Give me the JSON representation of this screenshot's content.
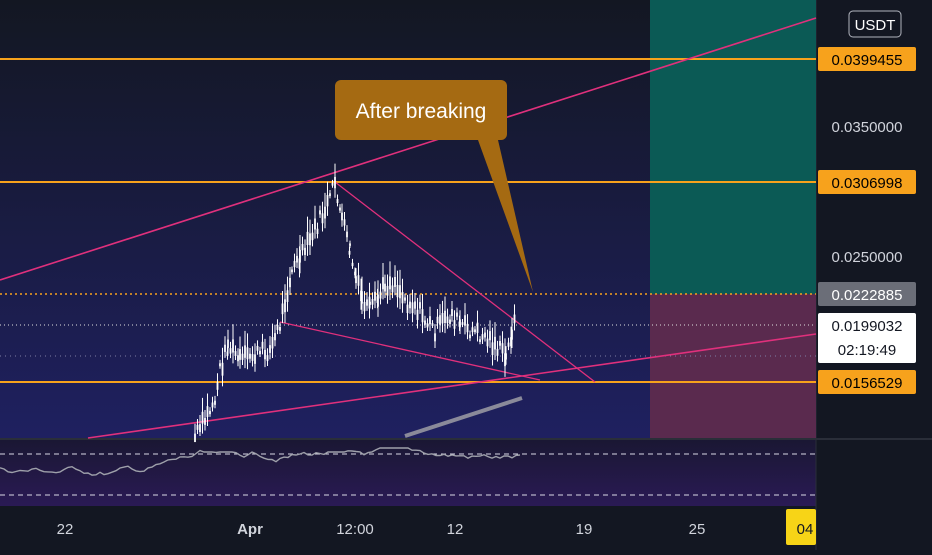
{
  "currency": "USDT",
  "annotation": "After breaking",
  "price_scale": {
    "ticks": [
      "0.0350000",
      "0.0250000"
    ],
    "labels": {
      "resistance_high": "0.0399455",
      "resistance_mid": "0.0306998",
      "entry": "0.0222885",
      "current": "0.0199032",
      "countdown": "02:19:49",
      "support": "0.0156529"
    }
  },
  "time_axis": {
    "ticks": [
      "22",
      "Apr",
      "12:00",
      "12",
      "19",
      "25"
    ],
    "current_date_badge": "04"
  },
  "colors": {
    "background_top": "#131722",
    "background_bottom": "#1f2060",
    "horizontal_level": "#f7a21c",
    "trendline": "#e0307c",
    "target_zone": "#0b5a55",
    "stop_zone": "#5a2a4e",
    "candle": "#ffffff",
    "annotation_bg": "#a56a12",
    "current_price_badge": "#ffffff",
    "entry_badge": "#6b6e78",
    "date_badge": "#f7d417"
  }
}
